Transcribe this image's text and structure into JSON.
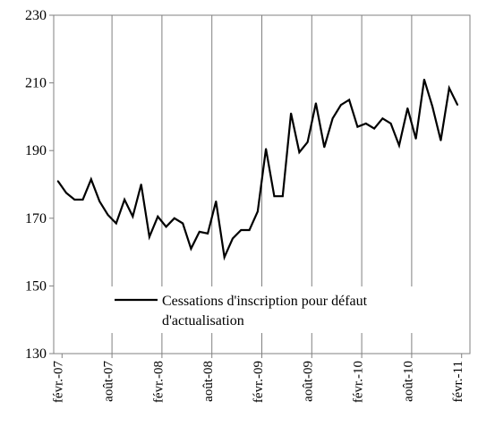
{
  "chart_data": {
    "type": "line",
    "grid": "vertical",
    "legend_position": "bottom-center (inside plot)",
    "ylim": [
      130,
      230
    ],
    "yticks": [
      "130",
      "150",
      "170",
      "190",
      "210",
      "230"
    ],
    "xticks": [
      "févr.-07",
      "août-07",
      "févr.-08",
      "août-08",
      "févr.-09",
      "août-09",
      "févr.-10",
      "août-10",
      "févr.-11"
    ],
    "series": [
      {
        "name": "Cessations d'inscription pour défaut d'actualisation",
        "legend_lines": [
          "Cessations d'inscription pour défaut",
          "d'actualisation"
        ],
        "color": "#000000",
        "x": [
          "2007-02",
          "2007-03",
          "2007-04",
          "2007-05",
          "2007-06",
          "2007-07",
          "2007-08",
          "2007-09",
          "2007-10",
          "2007-11",
          "2007-12",
          "2008-01",
          "2008-02",
          "2008-03",
          "2008-04",
          "2008-05",
          "2008-06",
          "2008-07",
          "2008-08",
          "2008-09",
          "2008-10",
          "2008-11",
          "2008-12",
          "2009-01",
          "2009-02",
          "2009-03",
          "2009-04",
          "2009-05",
          "2009-06",
          "2009-07",
          "2009-08",
          "2009-09",
          "2009-10",
          "2009-11",
          "2009-12",
          "2010-01",
          "2010-02",
          "2010-03",
          "2010-04",
          "2010-05",
          "2010-06",
          "2010-07",
          "2010-08",
          "2010-09",
          "2010-10",
          "2010-11",
          "2010-12",
          "2011-01",
          "2011-02",
          "2011-03"
        ],
        "values": [
          181,
          177.5,
          175.5,
          175.5,
          181.5,
          175,
          171,
          168.5,
          175.5,
          170.5,
          180,
          164.5,
          170.5,
          167.5,
          170,
          168.5,
          161,
          166,
          165.5,
          175,
          158.5,
          164,
          166.5,
          166.5,
          172,
          190.5,
          176.5,
          176.5,
          201,
          189.5,
          192.5,
          204,
          191,
          199.5,
          203.5,
          205,
          197,
          198,
          196.5,
          199.5,
          198,
          191.5,
          202.5,
          193.5,
          211,
          203,
          193,
          208.5,
          203.5,
          null
        ]
      }
    ]
  }
}
